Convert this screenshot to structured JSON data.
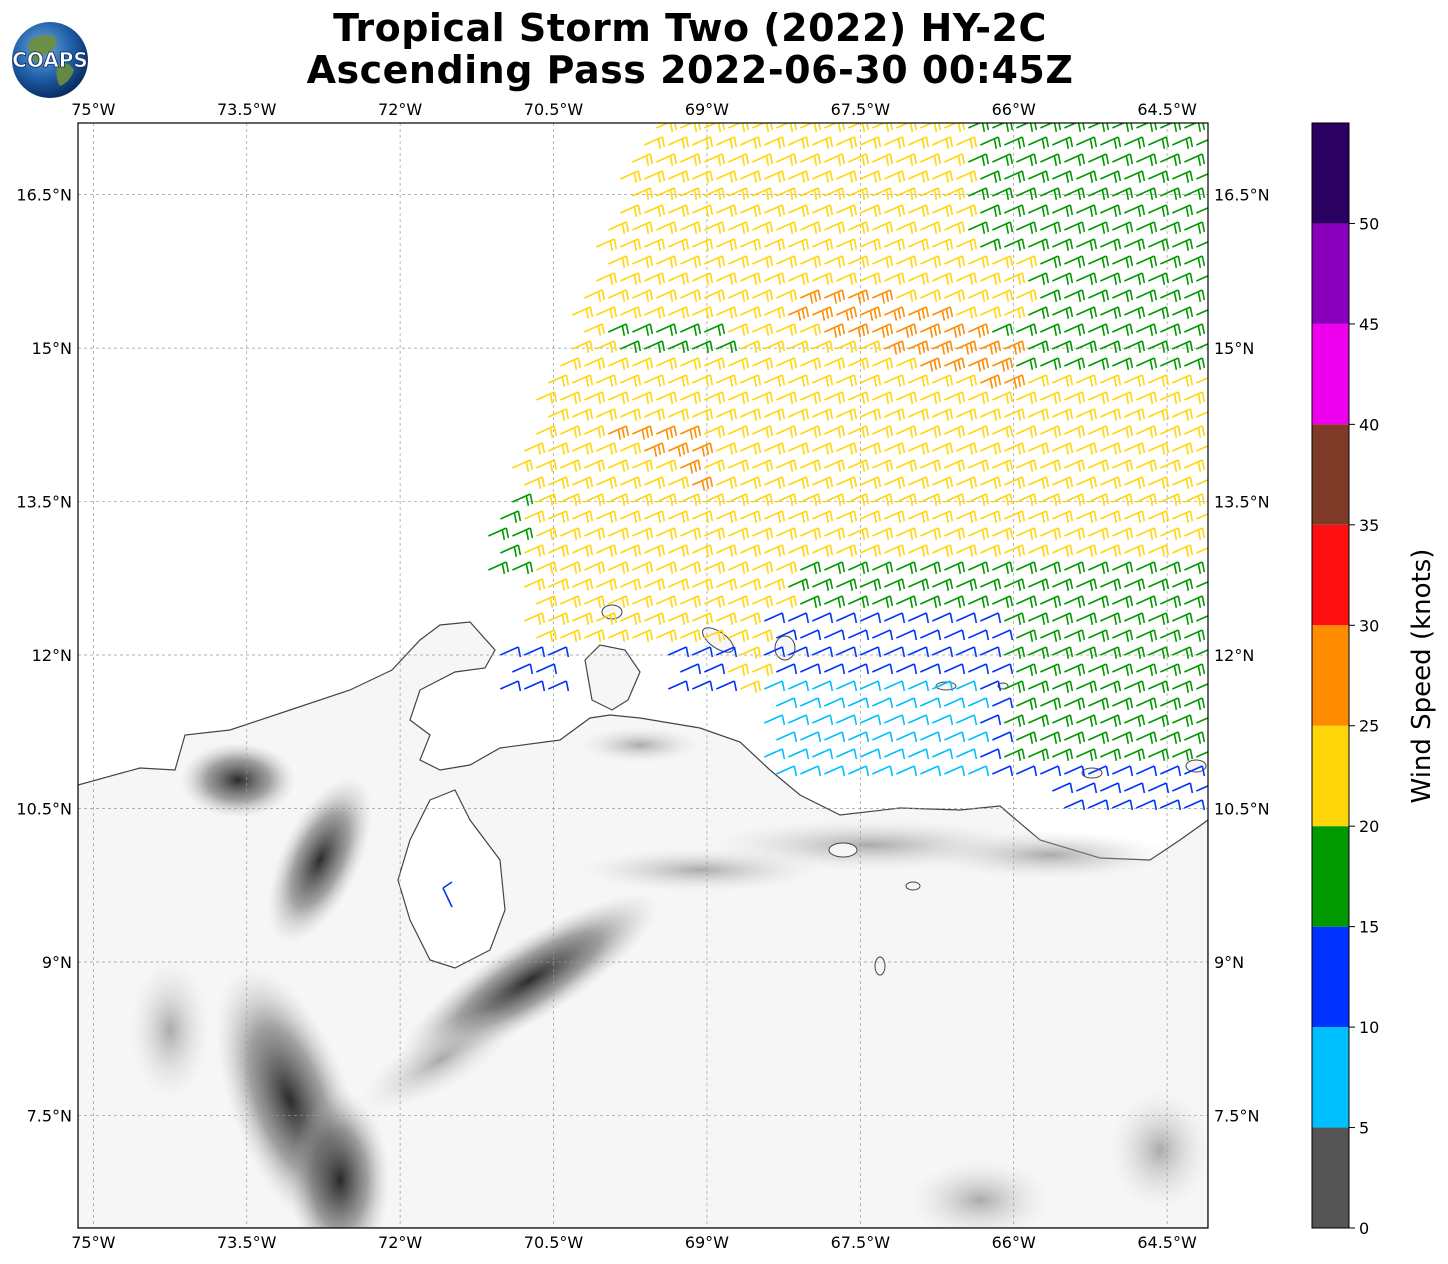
{
  "title": {
    "line1": "Tropical Storm Two (2022) HY-2C",
    "line2": "Ascending Pass 2022-06-30 00:45Z"
  },
  "logo": {
    "text": "COAPS",
    "icon": "globe-logo-icon"
  },
  "map": {
    "extent": {
      "lon_min": -75.15,
      "lon_max": -64.1,
      "lat_min": 6.4,
      "lat_max": 17.2
    },
    "lon_ticks": [
      "75°W",
      "73.5°W",
      "72°W",
      "70.5°W",
      "69°W",
      "67.5°W",
      "66°W",
      "64.5°W"
    ],
    "lon_tick_values": [
      -75,
      -73.5,
      -72,
      -70.5,
      -69,
      -67.5,
      -66,
      -64.5
    ],
    "lat_ticks": [
      "16.5°N",
      "15°N",
      "13.5°N",
      "12°N",
      "10.5°N",
      "9°N",
      "7.5°N"
    ],
    "lat_tick_values": [
      16.5,
      15,
      13.5,
      12,
      10.5,
      9,
      7.5
    ],
    "gridlines": true,
    "background": "land shown with grayscale terrain shading, coastline outlines"
  },
  "colorbar": {
    "label": "Wind Speed (knots)",
    "ticks": [
      "0",
      "5",
      "10",
      "15",
      "20",
      "25",
      "30",
      "35",
      "40",
      "45",
      "50"
    ],
    "bins": [
      {
        "from": 0,
        "to": 5,
        "color": "#555555"
      },
      {
        "from": 5,
        "to": 10,
        "color": "#00bfff"
      },
      {
        "from": 10,
        "to": 15,
        "color": "#0033ff"
      },
      {
        "from": 15,
        "to": 20,
        "color": "#009900"
      },
      {
        "from": 20,
        "to": 25,
        "color": "#ffd60a"
      },
      {
        "from": 25,
        "to": 30,
        "color": "#ff8c00"
      },
      {
        "from": 30,
        "to": 35,
        "color": "#ff1010"
      },
      {
        "from": 35,
        "to": 40,
        "color": "#7f3a28"
      },
      {
        "from": 40,
        "to": 45,
        "color": "#ee00ee"
      },
      {
        "from": 45,
        "to": 50,
        "color": "#8800bb"
      },
      {
        "from": 50,
        "to": 55,
        "color": "#2a0060"
      }
    ]
  },
  "wind_barbs": {
    "description": "Wind barbs from the HY-2C scatterometer swath, colored by speed",
    "regions": [
      {
        "name": "swath-yellow-bulk",
        "speed_range": "20-25",
        "color": "#ffd60a"
      },
      {
        "name": "swath-orange-core",
        "speed_range": "25-30",
        "color": "#ff8c00"
      },
      {
        "name": "swath-green-east",
        "speed_range": "15-20",
        "color": "#009900"
      },
      {
        "name": "swath-blue-south",
        "speed_range": "10-15",
        "color": "#0033ff"
      },
      {
        "name": "swath-cyan-coast",
        "speed_range": "5-10",
        "color": "#00bfff"
      }
    ]
  }
}
